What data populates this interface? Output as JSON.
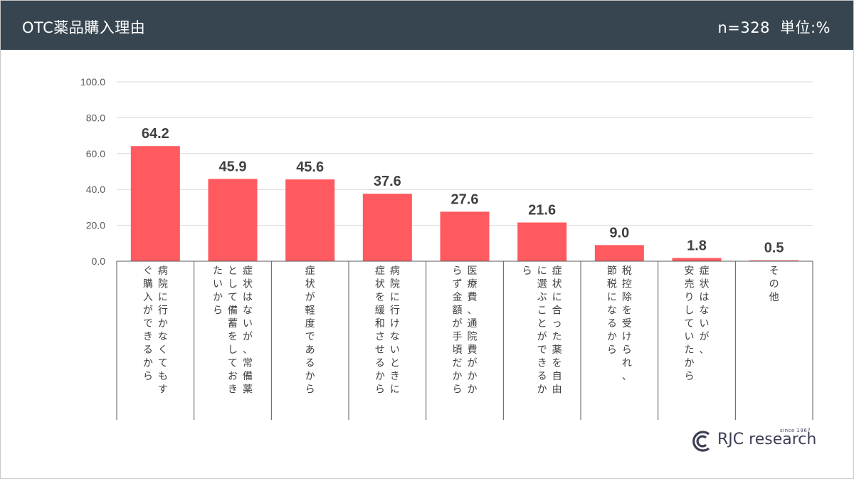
{
  "header": {
    "title": "OTC薬品購入理由",
    "sample": "n=328",
    "unit": "単位:%"
  },
  "logo": {
    "name": "RJC research",
    "since": "since 1967"
  },
  "colors": {
    "header_bg": "#36454f",
    "bar": "#ff5a5f",
    "text": "#404040"
  },
  "chart_data": {
    "type": "bar",
    "ylim": [
      0,
      100
    ],
    "yticks": [
      "0.0",
      "20.0",
      "40.0",
      "60.0",
      "80.0",
      "100.0"
    ],
    "grid": true,
    "values": [
      64.2,
      45.9,
      45.6,
      37.6,
      27.6,
      21.6,
      9.0,
      1.8,
      0.5
    ],
    "value_labels": [
      "64.2",
      "45.9",
      "45.6",
      "37.6",
      "27.6",
      "21.6",
      "9.0",
      "1.8",
      "0.5"
    ],
    "categories": [
      [
        "病院に行かなくてもす",
        "ぐ購入ができるから"
      ],
      [
        "症状はないが、常備薬",
        "として備蓄をしておき",
        "たいから"
      ],
      [
        "症状が軽度であるから"
      ],
      [
        "病院に行けないときに",
        "症状を緩和させるから"
      ],
      [
        "医療費、通院費がかか",
        "らず金額が手頃だから"
      ],
      [
        "症状に合った薬を自由",
        "に選ぶことができるか",
        "ら"
      ],
      [
        "税控除を受けられ、",
        "節税になるから"
      ],
      [
        "症状はないが、",
        "安売りしていたから"
      ],
      [
        "その他"
      ]
    ]
  }
}
